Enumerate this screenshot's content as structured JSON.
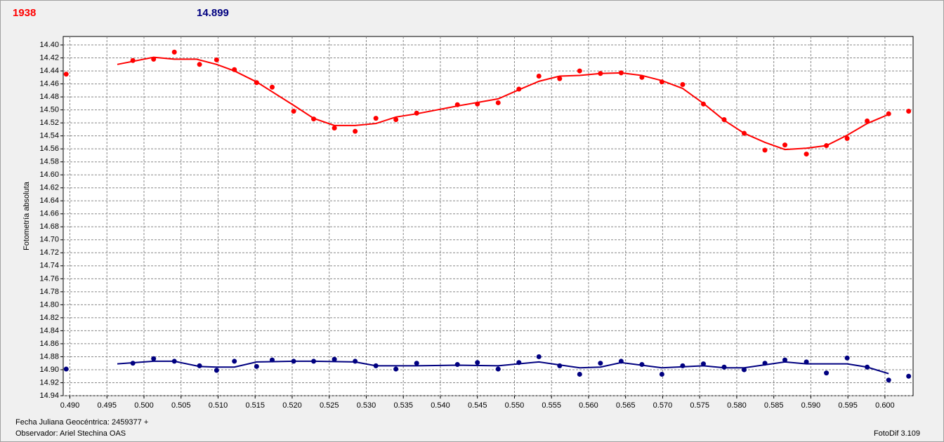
{
  "header": {
    "left": "1938",
    "right": "14.899"
  },
  "footer": {
    "date": "Fecha Juliana Geocéntrica: 2459377 +",
    "observer": "Observador: Ariel Stechina OAS",
    "version": "FotoDif 3.109"
  },
  "chart_data": {
    "type": "scatter",
    "ylabel": "Fotometría absoluta",
    "grid": true,
    "y_inverted": true,
    "xlim": [
      0.4891,
      0.6038
    ],
    "ylim": [
      14.387,
      14.94
    ],
    "xticks": [
      {
        "value": 0.49,
        "label": "0.490"
      },
      {
        "value": 0.495,
        "label": "0.495"
      },
      {
        "value": 0.5,
        "label": "0.500"
      },
      {
        "value": 0.505,
        "label": "0.505"
      },
      {
        "value": 0.51,
        "label": "0.510"
      },
      {
        "value": 0.515,
        "label": "0.515"
      },
      {
        "value": 0.52,
        "label": "0.520"
      },
      {
        "value": 0.525,
        "label": "0.525"
      },
      {
        "value": 0.53,
        "label": "0.530"
      },
      {
        "value": 0.535,
        "label": "0.535"
      },
      {
        "value": 0.54,
        "label": "0.540"
      },
      {
        "value": 0.545,
        "label": "0.545"
      },
      {
        "value": 0.55,
        "label": "0.550"
      },
      {
        "value": 0.555,
        "label": "0.555"
      },
      {
        "value": 0.56,
        "label": "0.560"
      },
      {
        "value": 0.565,
        "label": "0.565"
      },
      {
        "value": 0.57,
        "label": "0.570"
      },
      {
        "value": 0.575,
        "label": "0.575"
      },
      {
        "value": 0.58,
        "label": "0.580"
      },
      {
        "value": 0.585,
        "label": "0.585"
      },
      {
        "value": 0.59,
        "label": "0.590"
      },
      {
        "value": 0.595,
        "label": "0.595"
      },
      {
        "value": 0.6,
        "label": "0.600"
      }
    ],
    "yticks": [
      {
        "value": 14.4,
        "label": "14.40"
      },
      {
        "value": 14.42,
        "label": "14.42"
      },
      {
        "value": 14.44,
        "label": "14.44"
      },
      {
        "value": 14.46,
        "label": "14.46"
      },
      {
        "value": 14.48,
        "label": "14.48"
      },
      {
        "value": 14.5,
        "label": "14.50"
      },
      {
        "value": 14.52,
        "label": "14.52"
      },
      {
        "value": 14.54,
        "label": "14.54"
      },
      {
        "value": 14.56,
        "label": "14.56"
      },
      {
        "value": 14.58,
        "label": "14.58"
      },
      {
        "value": 14.6,
        "label": "14.60"
      },
      {
        "value": 14.62,
        "label": "14.62"
      },
      {
        "value": 14.64,
        "label": "14.64"
      },
      {
        "value": 14.66,
        "label": "14.66"
      },
      {
        "value": 14.68,
        "label": "14.68"
      },
      {
        "value": 14.7,
        "label": "14.70"
      },
      {
        "value": 14.72,
        "label": "14.72"
      },
      {
        "value": 14.74,
        "label": "14.74"
      },
      {
        "value": 14.76,
        "label": "14.76"
      },
      {
        "value": 14.78,
        "label": "14.78"
      },
      {
        "value": 14.8,
        "label": "14.80"
      },
      {
        "value": 14.82,
        "label": "14.82"
      },
      {
        "value": 14.84,
        "label": "14.84"
      },
      {
        "value": 14.86,
        "label": "14.86"
      },
      {
        "value": 14.88,
        "label": "14.88"
      },
      {
        "value": 14.9,
        "label": "14.90"
      },
      {
        "value": 14.92,
        "label": "14.92"
      },
      {
        "value": 14.94,
        "label": "14.94"
      }
    ],
    "series": [
      {
        "mode": "markers",
        "color": "#ff0000",
        "x": [
          0.4895,
          0.4985,
          0.5013,
          0.5041,
          0.5075,
          0.5098,
          0.5122,
          0.5152,
          0.5173,
          0.5202,
          0.5229,
          0.5257,
          0.5285,
          0.5313,
          0.534,
          0.5368,
          0.5423,
          0.545,
          0.5478,
          0.5506,
          0.5533,
          0.5561,
          0.5588,
          0.5616,
          0.5644,
          0.5672,
          0.5699,
          0.5727,
          0.5755,
          0.5783,
          0.581,
          0.5838,
          0.5865,
          0.5894,
          0.5921,
          0.5949,
          0.5976,
          0.6005,
          0.6032
        ],
        "values": [
          14.445,
          14.424,
          14.422,
          14.411,
          14.43,
          14.423,
          14.438,
          14.458,
          14.465,
          14.502,
          14.514,
          14.528,
          14.533,
          14.513,
          14.515,
          14.505,
          14.492,
          14.491,
          14.489,
          14.468,
          14.448,
          14.452,
          14.44,
          14.444,
          14.443,
          14.45,
          14.457,
          14.461,
          14.491,
          14.515,
          14.536,
          14.562,
          14.554,
          14.568,
          14.555,
          14.544,
          14.517,
          14.506,
          14.502
        ]
      },
      {
        "mode": "line",
        "color": "#ff0000",
        "x": [
          0.4964,
          0.5013,
          0.5041,
          0.5071,
          0.5098,
          0.5122,
          0.5152,
          0.5202,
          0.5229,
          0.5257,
          0.5285,
          0.5313,
          0.534,
          0.5368,
          0.5423,
          0.5478,
          0.5506,
          0.5533,
          0.5561,
          0.5588,
          0.5616,
          0.5644,
          0.5672,
          0.5699,
          0.5727,
          0.5755,
          0.5783,
          0.581,
          0.5838,
          0.5865,
          0.5894,
          0.5921,
          0.5949,
          0.5976,
          0.6005
        ],
        "values": [
          14.43,
          14.419,
          14.422,
          14.422,
          14.43,
          14.44,
          14.457,
          14.493,
          14.513,
          14.524,
          14.524,
          14.521,
          14.511,
          14.506,
          14.494,
          14.483,
          14.469,
          14.456,
          14.448,
          14.447,
          14.444,
          14.443,
          14.447,
          14.455,
          14.467,
          14.49,
          14.516,
          14.536,
          14.55,
          14.561,
          14.559,
          14.555,
          14.539,
          14.521,
          14.507
        ]
      },
      {
        "mode": "markers",
        "color": "#000080",
        "x": [
          0.4895,
          0.4985,
          0.5013,
          0.5041,
          0.5075,
          0.5098,
          0.5122,
          0.5152,
          0.5173,
          0.5202,
          0.5229,
          0.5257,
          0.5285,
          0.5313,
          0.534,
          0.5368,
          0.5423,
          0.545,
          0.5478,
          0.5506,
          0.5533,
          0.5561,
          0.5588,
          0.5616,
          0.5644,
          0.5672,
          0.5699,
          0.5727,
          0.5755,
          0.5783,
          0.581,
          0.5838,
          0.5865,
          0.5894,
          0.5921,
          0.5949,
          0.5976,
          0.6005,
          0.6032
        ],
        "values": [
          14.899,
          14.89,
          14.883,
          14.887,
          14.894,
          14.901,
          14.887,
          14.895,
          14.885,
          14.887,
          14.887,
          14.884,
          14.887,
          14.894,
          14.899,
          14.89,
          14.892,
          14.889,
          14.899,
          14.889,
          14.88,
          14.894,
          14.907,
          14.89,
          14.887,
          14.892,
          14.907,
          14.894,
          14.891,
          14.896,
          14.9,
          14.89,
          14.885,
          14.888,
          14.905,
          14.882,
          14.896,
          14.916,
          14.91
        ]
      },
      {
        "mode": "line",
        "color": "#000080",
        "x": [
          0.4964,
          0.5013,
          0.5041,
          0.5075,
          0.5098,
          0.5122,
          0.5152,
          0.5202,
          0.5229,
          0.5285,
          0.5313,
          0.5368,
          0.5423,
          0.5478,
          0.5533,
          0.5588,
          0.5616,
          0.5644,
          0.5699,
          0.5755,
          0.5783,
          0.581,
          0.5865,
          0.5894,
          0.5949,
          0.5976,
          0.6005
        ],
        "values": [
          14.891,
          14.887,
          14.887,
          14.895,
          14.896,
          14.896,
          14.888,
          14.887,
          14.887,
          14.888,
          14.894,
          14.894,
          14.893,
          14.894,
          14.888,
          14.897,
          14.896,
          14.889,
          14.897,
          14.894,
          14.897,
          14.897,
          14.888,
          14.891,
          14.891,
          14.896,
          14.906
        ]
      }
    ]
  }
}
